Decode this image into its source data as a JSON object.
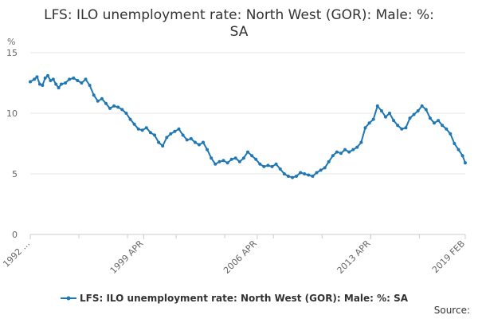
{
  "chart_data": {
    "type": "line",
    "title_line1": "LFS: ILO unemployment rate: North West (GOR): Male: %:",
    "title_line2": "SA",
    "y_unit": "%",
    "ylim": [
      0,
      15
    ],
    "y_ticks": [
      "0",
      "5",
      "10",
      "15"
    ],
    "y_tick_values": [
      0,
      5,
      10,
      15
    ],
    "x_tick_labels": [
      "1992 ...",
      "1999 APR",
      "2006 APR",
      "2013 APR",
      "2019 FEB"
    ],
    "x_tick_dates": [
      "1992-04",
      "1999-04",
      "2006-04",
      "2013-04",
      "2019-02"
    ],
    "x_start": "1992-04",
    "x_end": "2019-02",
    "grid": true,
    "legend_position": "bottom",
    "series": [
      {
        "name": "LFS: ILO unemployment rate: North West (GOR): Male: %: SA",
        "color": "#1f77b4",
        "points": [
          [
            "1992-04",
            12.6
          ],
          [
            "1992-07",
            12.8
          ],
          [
            "1992-09",
            13.0
          ],
          [
            "1992-11",
            12.4
          ],
          [
            "1993-01",
            12.3
          ],
          [
            "1993-03",
            12.9
          ],
          [
            "1993-05",
            13.1
          ],
          [
            "1993-07",
            12.7
          ],
          [
            "1993-09",
            12.8
          ],
          [
            "1993-11",
            12.4
          ],
          [
            "1994-01",
            12.1
          ],
          [
            "1994-03",
            12.4
          ],
          [
            "1994-06",
            12.5
          ],
          [
            "1994-09",
            12.8
          ],
          [
            "1994-12",
            12.9
          ],
          [
            "1995-03",
            12.7
          ],
          [
            "1995-06",
            12.5
          ],
          [
            "1995-09",
            12.8
          ],
          [
            "1995-12",
            12.3
          ],
          [
            "1996-03",
            11.5
          ],
          [
            "1996-06",
            11.0
          ],
          [
            "1996-09",
            11.2
          ],
          [
            "1996-12",
            10.8
          ],
          [
            "1997-03",
            10.4
          ],
          [
            "1997-06",
            10.6
          ],
          [
            "1997-09",
            10.5
          ],
          [
            "1997-12",
            10.3
          ],
          [
            "1998-03",
            10.0
          ],
          [
            "1998-06",
            9.5
          ],
          [
            "1998-09",
            9.1
          ],
          [
            "1998-12",
            8.7
          ],
          [
            "1999-03",
            8.6
          ],
          [
            "1999-06",
            8.8
          ],
          [
            "1999-09",
            8.4
          ],
          [
            "1999-12",
            8.2
          ],
          [
            "2000-03",
            7.6
          ],
          [
            "2000-06",
            7.3
          ],
          [
            "2000-09",
            8.0
          ],
          [
            "2000-12",
            8.3
          ],
          [
            "2001-03",
            8.5
          ],
          [
            "2001-06",
            8.7
          ],
          [
            "2001-09",
            8.2
          ],
          [
            "2001-12",
            7.8
          ],
          [
            "2002-03",
            7.9
          ],
          [
            "2002-06",
            7.6
          ],
          [
            "2002-09",
            7.4
          ],
          [
            "2002-12",
            7.6
          ],
          [
            "2003-03",
            7.0
          ],
          [
            "2003-06",
            6.3
          ],
          [
            "2003-09",
            5.8
          ],
          [
            "2003-12",
            6.0
          ],
          [
            "2004-03",
            6.1
          ],
          [
            "2004-06",
            5.9
          ],
          [
            "2004-09",
            6.2
          ],
          [
            "2004-12",
            6.3
          ],
          [
            "2005-03",
            6.0
          ],
          [
            "2005-06",
            6.3
          ],
          [
            "2005-09",
            6.8
          ],
          [
            "2005-12",
            6.5
          ],
          [
            "2006-03",
            6.2
          ],
          [
            "2006-06",
            5.8
          ],
          [
            "2006-09",
            5.6
          ],
          [
            "2006-12",
            5.7
          ],
          [
            "2007-03",
            5.6
          ],
          [
            "2007-06",
            5.8
          ],
          [
            "2007-09",
            5.4
          ],
          [
            "2007-12",
            5.0
          ],
          [
            "2008-03",
            4.8
          ],
          [
            "2008-06",
            4.7
          ],
          [
            "2008-09",
            4.8
          ],
          [
            "2008-12",
            5.1
          ],
          [
            "2009-03",
            5.0
          ],
          [
            "2009-06",
            4.9
          ],
          [
            "2009-09",
            4.8
          ],
          [
            "2009-12",
            5.1
          ],
          [
            "2010-03",
            5.3
          ],
          [
            "2010-06",
            5.5
          ],
          [
            "2010-09",
            6.0
          ],
          [
            "2010-12",
            6.5
          ],
          [
            "2011-03",
            6.8
          ],
          [
            "2011-06",
            6.7
          ],
          [
            "2011-09",
            7.0
          ],
          [
            "2011-12",
            6.8
          ],
          [
            "2012-03",
            7.0
          ],
          [
            "2012-06",
            7.2
          ],
          [
            "2012-09",
            7.6
          ],
          [
            "2012-12",
            8.8
          ],
          [
            "2013-03",
            9.2
          ],
          [
            "2013-06",
            9.5
          ],
          [
            "2013-09",
            10.6
          ],
          [
            "2013-12",
            10.2
          ],
          [
            "2014-03",
            9.7
          ],
          [
            "2014-06",
            10.0
          ],
          [
            "2014-09",
            9.4
          ],
          [
            "2014-12",
            9.0
          ],
          [
            "2015-03",
            8.7
          ],
          [
            "2015-06",
            8.8
          ],
          [
            "2015-09",
            9.6
          ],
          [
            "2015-12",
            9.9
          ],
          [
            "2016-03",
            10.2
          ],
          [
            "2016-06",
            10.6
          ],
          [
            "2016-09",
            10.3
          ],
          [
            "2016-12",
            9.6
          ],
          [
            "2017-03",
            9.2
          ],
          [
            "2017-06",
            9.4
          ],
          [
            "2017-09",
            9.0
          ],
          [
            "2017-12",
            8.7
          ],
          [
            "2018-03",
            8.3
          ],
          [
            "2018-06",
            7.5
          ],
          [
            "2018-09",
            7.0
          ],
          [
            "2018-12",
            6.5
          ],
          [
            "2019-02",
            5.9
          ]
        ]
      }
    ]
  },
  "legend": {
    "label": "LFS: ILO unemployment rate: North West (GOR): Male: %: SA"
  },
  "footer": {
    "source_label": "Source:"
  }
}
